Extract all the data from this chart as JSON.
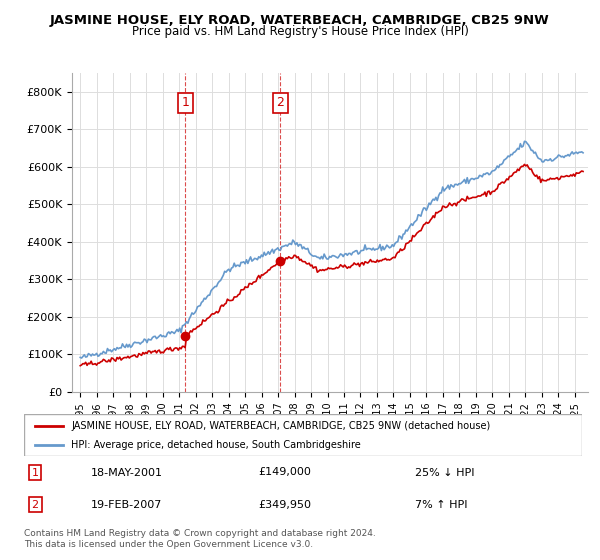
{
  "title": "JASMINE HOUSE, ELY ROAD, WATERBEACH, CAMBRIDGE, CB25 9NW",
  "subtitle": "Price paid vs. HM Land Registry's House Price Index (HPI)",
  "legend_line1": "JASMINE HOUSE, ELY ROAD, WATERBEACH, CAMBRIDGE, CB25 9NW (detached house)",
  "legend_line2": "HPI: Average price, detached house, South Cambridgeshire",
  "transaction1_date": "18-MAY-2001",
  "transaction1_price": "£149,000",
  "transaction1_hpi": "25% ↓ HPI",
  "transaction2_date": "19-FEB-2007",
  "transaction2_price": "£349,950",
  "transaction2_hpi": "7% ↑ HPI",
  "footer": "Contains HM Land Registry data © Crown copyright and database right 2024.\nThis data is licensed under the Open Government Licence v3.0.",
  "red_color": "#cc0000",
  "blue_color": "#6699cc",
  "ylim": [
    0,
    850000
  ],
  "yticks": [
    0,
    100000,
    200000,
    300000,
    400000,
    500000,
    600000,
    700000,
    800000
  ],
  "sale1_year": 2001.38,
  "sale1_price": 149000,
  "sale2_year": 2007.13,
  "sale2_price": 349950
}
